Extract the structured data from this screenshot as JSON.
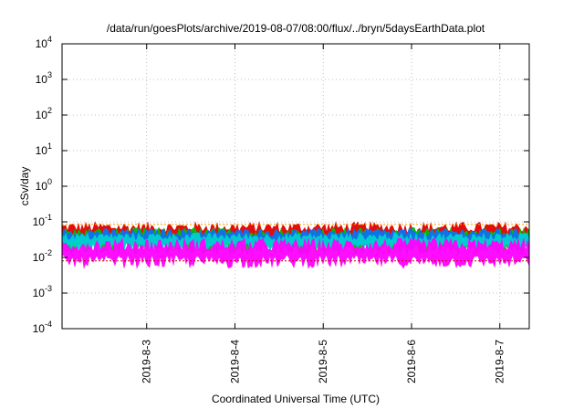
{
  "chart_data": {
    "type": "area",
    "title": "/data/run/goesPlots/archive/2019-08-07/08:00/flux/../bryn/5daysEarthData.plot",
    "xlabel": "Coordinated Universal Time (UTC)",
    "ylabel": "cSv/day",
    "yscale": "log",
    "ylim": [
      0.0001,
      10000
    ],
    "y_ticks": [
      {
        "exp": "-4",
        "value": 0.0001
      },
      {
        "exp": "-3",
        "value": 0.001
      },
      {
        "exp": "-2",
        "value": 0.01
      },
      {
        "exp": "-1",
        "value": 0.1
      },
      {
        "exp": "0",
        "value": 1
      },
      {
        "exp": "1",
        "value": 10
      },
      {
        "exp": "2",
        "value": 100
      },
      {
        "exp": "3",
        "value": 1000
      },
      {
        "exp": "4",
        "value": 10000
      }
    ],
    "y_tick_base": "10",
    "xlim": [
      "2019-08-02 01:00",
      "2019-08-07 08:00"
    ],
    "x_ticks": [
      "2019-8-3",
      "2019-8-4",
      "2019-8-5",
      "2019-8-6",
      "2019-8-7"
    ],
    "grid": true,
    "series": [
      {
        "color": "#e00000",
        "band": [
          0.02,
          0.1
        ]
      },
      {
        "color": "#00c000",
        "band": [
          0.012,
          0.07
        ]
      },
      {
        "color": "#1070f0",
        "band": [
          0.02,
          0.065
        ]
      },
      {
        "color": "#00d0d0",
        "band": [
          0.015,
          0.05
        ]
      },
      {
        "color": "#ff00ff",
        "band": [
          0.005,
          0.035
        ]
      }
    ],
    "reference_lines": [
      {
        "color": "#ffa000",
        "value": 0.085,
        "style": "dotted"
      },
      {
        "color": "#c00000",
        "value": 0.008,
        "style": "dotted"
      }
    ]
  }
}
